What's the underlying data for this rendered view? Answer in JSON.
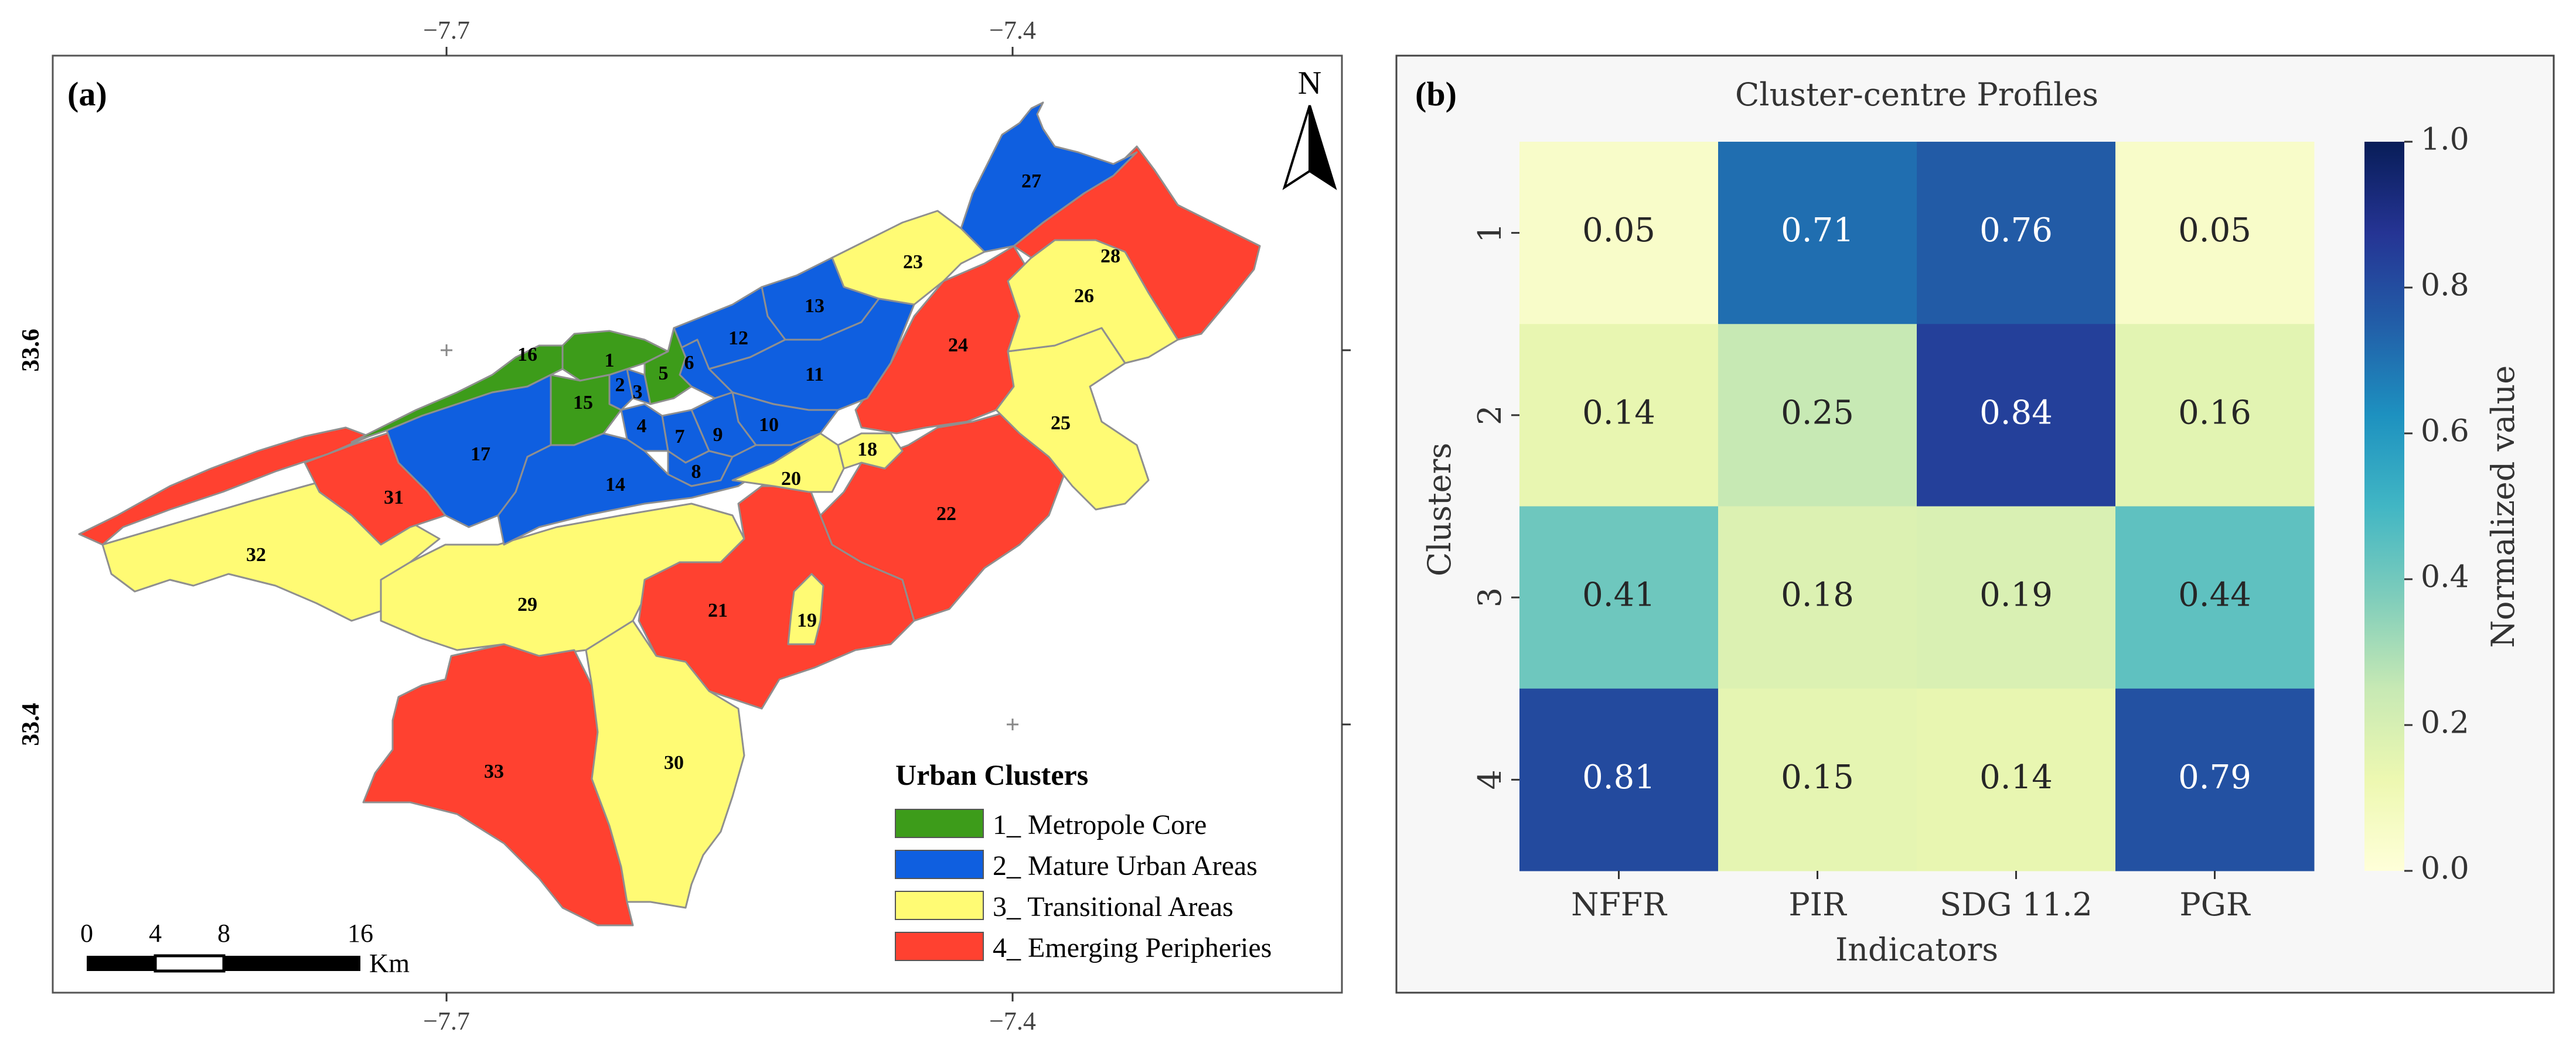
{
  "panel_a": {
    "label": "(a)",
    "north_label": "N",
    "axis": {
      "lon_ticks": [
        "−7.7",
        "−7.4"
      ],
      "lat_ticks": [
        "33.6",
        "33.4"
      ]
    },
    "legend": {
      "title": "Urban Clusters",
      "items": [
        {
          "label": "1_ Metropole Core",
          "color": "#3d9c1a"
        },
        {
          "label": "2_ Mature Urban Areas",
          "color": "#0f5fe0"
        },
        {
          "label": "3_ Transitional Areas",
          "color": "#fffb74"
        },
        {
          "label": "4_ Emerging Peripheries",
          "color": "#ff4130"
        }
      ]
    },
    "scale_bar": {
      "ticks": [
        "0",
        "4",
        "8",
        "16"
      ],
      "unit": "Km"
    },
    "zones": [
      {
        "id": "1",
        "cluster": 1
      },
      {
        "id": "2",
        "cluster": 2
      },
      {
        "id": "3",
        "cluster": 2
      },
      {
        "id": "4",
        "cluster": 2
      },
      {
        "id": "5",
        "cluster": 1
      },
      {
        "id": "6",
        "cluster": 2
      },
      {
        "id": "7",
        "cluster": 2
      },
      {
        "id": "8",
        "cluster": 2
      },
      {
        "id": "9",
        "cluster": 2
      },
      {
        "id": "10",
        "cluster": 2
      },
      {
        "id": "11",
        "cluster": 2
      },
      {
        "id": "12",
        "cluster": 2
      },
      {
        "id": "13",
        "cluster": 2
      },
      {
        "id": "14",
        "cluster": 2
      },
      {
        "id": "15",
        "cluster": 1
      },
      {
        "id": "16",
        "cluster": 1
      },
      {
        "id": "17",
        "cluster": 2
      },
      {
        "id": "18",
        "cluster": 3
      },
      {
        "id": "19",
        "cluster": 3
      },
      {
        "id": "20",
        "cluster": 3
      },
      {
        "id": "21",
        "cluster": 4
      },
      {
        "id": "22",
        "cluster": 4
      },
      {
        "id": "23",
        "cluster": 3
      },
      {
        "id": "24",
        "cluster": 4
      },
      {
        "id": "25",
        "cluster": 3
      },
      {
        "id": "26",
        "cluster": 3
      },
      {
        "id": "27",
        "cluster": 2
      },
      {
        "id": "28",
        "cluster": 4
      },
      {
        "id": "29",
        "cluster": 3
      },
      {
        "id": "30",
        "cluster": 3
      },
      {
        "id": "31",
        "cluster": 4
      },
      {
        "id": "32",
        "cluster": 3
      },
      {
        "id": "33",
        "cluster": 4
      }
    ]
  },
  "chart_data": {
    "type": "heatmap",
    "label": "(b)",
    "title": "Cluster-centre Profiles",
    "xlabel": "Indicators",
    "ylabel": "Clusters",
    "x": [
      "NFFR",
      "PIR",
      "SDG 11.2",
      "PGR"
    ],
    "y": [
      "1",
      "2",
      "3",
      "4"
    ],
    "values": [
      [
        0.05,
        0.71,
        0.76,
        0.05
      ],
      [
        0.14,
        0.25,
        0.84,
        0.16
      ],
      [
        0.41,
        0.18,
        0.19,
        0.44
      ],
      [
        0.81,
        0.15,
        0.14,
        0.79
      ]
    ],
    "cell_labels": [
      [
        "0.05",
        "0.71",
        "0.76",
        "0.05"
      ],
      [
        "0.14",
        "0.25",
        "0.84",
        "0.16"
      ],
      [
        "0.41",
        "0.18",
        "0.19",
        "0.44"
      ],
      [
        "0.81",
        "0.15",
        "0.14",
        "0.79"
      ]
    ],
    "colorbar": {
      "label": "Normalized value",
      "range": [
        0,
        1
      ],
      "ticks": [
        "0.0",
        "0.2",
        "0.4",
        "0.6",
        "0.8",
        "1.0"
      ],
      "colormap": "YlGnBu"
    }
  }
}
